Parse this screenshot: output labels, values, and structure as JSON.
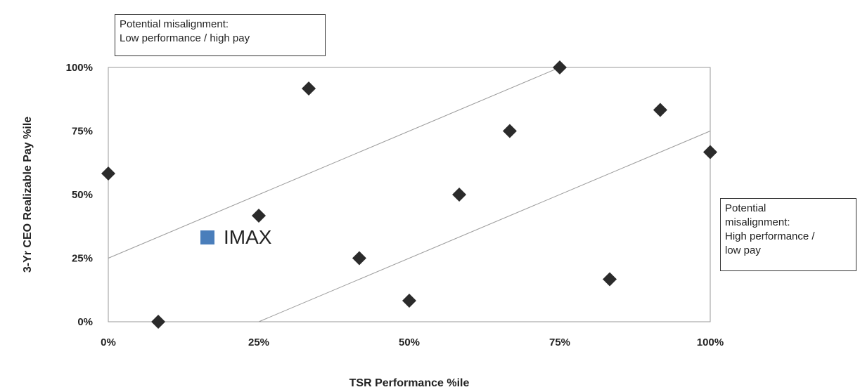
{
  "chart_data": {
    "type": "scatter",
    "xlabel": "TSR Performance %ile",
    "ylabel": "3-Yr CEO Realizable Pay  %ile",
    "xlim": [
      0,
      100
    ],
    "ylim": [
      0,
      100
    ],
    "x_ticks": [
      "0%",
      "25%",
      "50%",
      "75%",
      "100%"
    ],
    "y_ticks": [
      "0%",
      "25%",
      "50%",
      "75%",
      "100%"
    ],
    "grid": false,
    "series": [
      {
        "name": "",
        "marker": "diamond",
        "color": "#2b2b2b",
        "points": [
          {
            "x": 0,
            "y": 58.3
          },
          {
            "x": 8.3,
            "y": 0
          },
          {
            "x": 25,
            "y": 41.7
          },
          {
            "x": 33.3,
            "y": 91.7
          },
          {
            "x": 41.7,
            "y": 25
          },
          {
            "x": 50,
            "y": 8.3
          },
          {
            "x": 58.3,
            "y": 50
          },
          {
            "x": 66.7,
            "y": 75
          },
          {
            "x": 75,
            "y": 100
          },
          {
            "x": 83.3,
            "y": 16.7
          },
          {
            "x": 91.7,
            "y": 83.3
          },
          {
            "x": 100,
            "y": 66.7
          }
        ]
      }
    ],
    "reference_lines": [
      {
        "from": [
          0,
          25
        ],
        "to": [
          75,
          100
        ]
      },
      {
        "from": [
          25,
          0
        ],
        "to": [
          100,
          75
        ]
      }
    ],
    "legend": {
      "label": "IMAX",
      "color": "#4a7ebb",
      "placement": "center-left"
    },
    "annotations": {
      "top": [
        "Potential misalignment:",
        "Low performance / high pay"
      ],
      "right": [
        "Potential",
        "misalignment:",
        "High performance /",
        "low pay"
      ]
    }
  }
}
